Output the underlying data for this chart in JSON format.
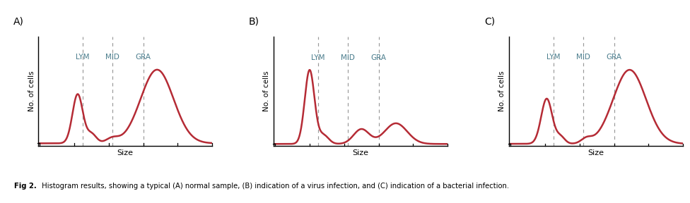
{
  "fig_label_A": "A)",
  "fig_label_B": "B)",
  "fig_label_C": "C)",
  "ylabel": "No. of cells",
  "xlabel": "Size",
  "vline_labels": [
    "LYM",
    "MID",
    "GRA"
  ],
  "vline_positions": [
    0.25,
    0.42,
    0.6
  ],
  "line_color": "#b52b35",
  "vline_color": "#999999",
  "caption_bold": "Fig 2.",
  "caption_normal": " Histogram results, showing a typical (A) normal sample, (B) indication of a virus infection, and (C) indication of a bacterial infection.",
  "background_color": "#ffffff",
  "font_color": "#000000",
  "label_color": "#4a7c8c"
}
